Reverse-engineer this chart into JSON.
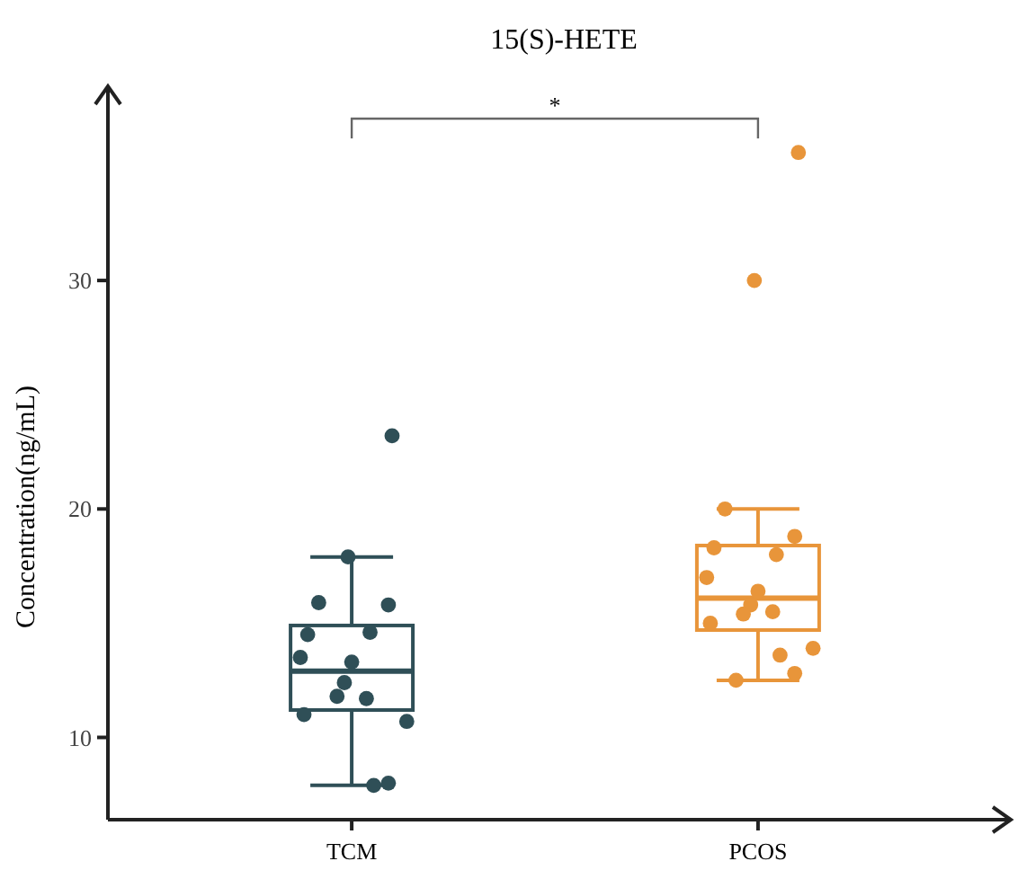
{
  "chart_data": {
    "type": "box",
    "title": "15(S)-HETE",
    "ylabel": "Concentration(ng/mL)",
    "categories": [
      "TCM",
      "PCOS"
    ],
    "colors": [
      "#2f4f57",
      "#e8953a"
    ],
    "boxes": [
      {
        "low": 7.9,
        "q1": 11.2,
        "median": 12.9,
        "q3": 14.9,
        "high": 17.9
      },
      {
        "low": 12.5,
        "q1": 14.7,
        "median": 16.1,
        "q3": 18.4,
        "high": 20.0
      }
    ],
    "series": [
      {
        "type": "scatter",
        "color": "#2f4f57",
        "x": [
          "TCM",
          "TCM",
          "TCM",
          "TCM",
          "TCM",
          "TCM",
          "TCM",
          "TCM",
          "TCM",
          "TCM",
          "TCM",
          "TCM",
          "TCM",
          "TCM",
          "TCM"
        ],
        "values": [
          23.2,
          17.9,
          15.9,
          15.8,
          14.5,
          14.6,
          13.5,
          13.3,
          12.4,
          11.7,
          11.8,
          11.0,
          10.7,
          7.9,
          8.0
        ]
      },
      {
        "type": "scatter",
        "color": "#e8953a",
        "x": [
          "PCOS",
          "PCOS",
          "PCOS",
          "PCOS",
          "PCOS",
          "PCOS",
          "PCOS",
          "PCOS",
          "PCOS",
          "PCOS",
          "PCOS",
          "PCOS",
          "PCOS",
          "PCOS",
          "PCOS",
          "PCOS"
        ],
        "values": [
          35.6,
          30.0,
          20.0,
          18.8,
          18.3,
          18.0,
          17.0,
          16.4,
          15.8,
          15.5,
          15.4,
          15.0,
          13.9,
          13.6,
          12.8,
          12.5
        ]
      }
    ],
    "ylim": [
      6.4,
      38.5
    ],
    "yticks": [
      10,
      20,
      30
    ],
    "grid": false,
    "marker": "circle",
    "annotations": [
      "*"
    ]
  }
}
